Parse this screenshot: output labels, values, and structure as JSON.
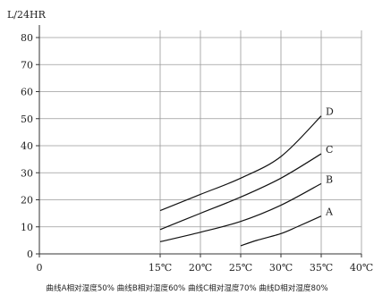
{
  "chart_data": {
    "type": "line",
    "ylabel": "L/24HR",
    "xlim": [
      0,
      40
    ],
    "ylim": [
      0,
      80
    ],
    "x_ticks": [
      "0",
      "15℃",
      "20℃",
      "25℃",
      "30℃",
      "35℃",
      "40℃"
    ],
    "x_tick_values": [
      0,
      15,
      20,
      25,
      30,
      35,
      40
    ],
    "y_ticks": [
      "0",
      "10",
      "20",
      "30",
      "40",
      "50",
      "60",
      "70",
      "80"
    ],
    "y_tick_values": [
      0,
      10,
      20,
      30,
      40,
      50,
      60,
      70,
      80
    ],
    "grid": true,
    "series": [
      {
        "name": "A",
        "x": [
          25,
          27,
          30,
          32,
          35
        ],
        "y": [
          3,
          5,
          7.5,
          10,
          14
        ]
      },
      {
        "name": "B",
        "x": [
          15,
          20,
          25,
          30,
          35
        ],
        "y": [
          4.5,
          8,
          12,
          18,
          26
        ]
      },
      {
        "name": "C",
        "x": [
          15,
          20,
          25,
          30,
          35
        ],
        "y": [
          9,
          15,
          21,
          28,
          37
        ]
      },
      {
        "name": "D",
        "x": [
          15,
          20,
          25,
          30,
          35
        ],
        "y": [
          16,
          22,
          28,
          36,
          51
        ]
      }
    ],
    "caption": "曲线A相对湿度50%  曲线B相对湿度60%  曲线C相对湿度70%  曲线D相对湿度80%"
  }
}
